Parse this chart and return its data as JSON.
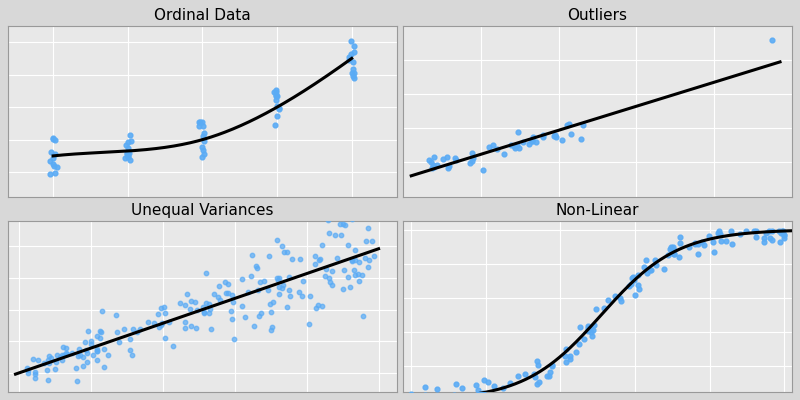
{
  "titles": [
    "Ordinal Data",
    "Outliers",
    "Unequal Variances",
    "Non-Linear"
  ],
  "dot_color": "#5aabf5",
  "line_color": "#000000",
  "bg_color": "#d8d8d8",
  "plot_bg_color": "#e8e8e8",
  "dot_size": 12,
  "dot_alpha": 0.9,
  "line_width": 2.2,
  "title_fontsize": 11,
  "grid_color": "#ffffff",
  "seed": 7
}
